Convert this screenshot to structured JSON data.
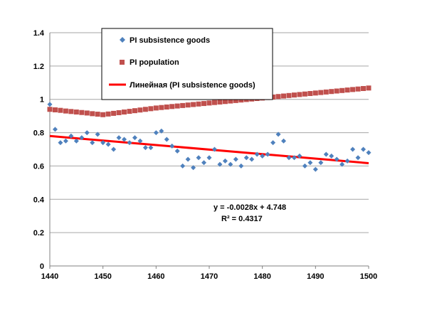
{
  "chart_data": {
    "type": "scatter",
    "title": "",
    "xlabel": "",
    "ylabel": "",
    "xlim": [
      1440,
      1500
    ],
    "ylim": [
      0,
      1.4
    ],
    "x_ticks": [
      "1440",
      "1450",
      "1460",
      "1470",
      "1480",
      "1490",
      "1500"
    ],
    "y_ticks": [
      "0",
      "0.2",
      "0.4",
      "0.6",
      "0.8",
      "1",
      "1.2",
      "1.4"
    ],
    "grid": "horizontal",
    "legend_position": "top-center",
    "legend": [
      "PI subsistence goods",
      "PI population",
      "Линейная (PI subsistence goods)"
    ],
    "series": [
      {
        "name": "PI subsistence goods",
        "marker": "diamond",
        "color": "#4F81BD",
        "x": [
          1440,
          1441,
          1442,
          1443,
          1444,
          1445,
          1446,
          1447,
          1448,
          1449,
          1450,
          1451,
          1452,
          1453,
          1454,
          1455,
          1456,
          1457,
          1458,
          1459,
          1460,
          1461,
          1462,
          1463,
          1464,
          1465,
          1466,
          1467,
          1468,
          1469,
          1470,
          1471,
          1472,
          1473,
          1474,
          1475,
          1476,
          1477,
          1478,
          1479,
          1480,
          1481,
          1482,
          1483,
          1484,
          1485,
          1486,
          1487,
          1488,
          1489,
          1490,
          1491,
          1492,
          1493,
          1494,
          1495,
          1496,
          1497,
          1498,
          1499,
          1500
        ],
        "y": [
          0.97,
          0.82,
          0.74,
          0.75,
          0.78,
          0.75,
          0.77,
          0.8,
          0.74,
          0.79,
          0.74,
          0.73,
          0.7,
          0.77,
          0.76,
          0.74,
          0.77,
          0.75,
          0.71,
          0.71,
          0.8,
          0.81,
          0.76,
          0.72,
          0.69,
          0.6,
          0.64,
          0.59,
          0.65,
          0.62,
          0.65,
          0.7,
          0.61,
          0.63,
          0.61,
          0.64,
          0.6,
          0.65,
          0.64,
          0.67,
          0.66,
          0.67,
          0.74,
          0.79,
          0.75,
          0.65,
          0.65,
          0.66,
          0.6,
          0.62,
          0.58,
          0.62,
          0.67,
          0.66,
          0.64,
          0.61,
          0.63,
          0.7,
          0.65,
          0.7,
          0.68
        ]
      },
      {
        "name": "PI population",
        "marker": "square",
        "color": "#C0504D",
        "x": [
          1440,
          1441,
          1442,
          1443,
          1444,
          1445,
          1446,
          1447,
          1448,
          1449,
          1450,
          1451,
          1452,
          1453,
          1454,
          1455,
          1456,
          1457,
          1458,
          1459,
          1460,
          1461,
          1462,
          1463,
          1464,
          1465,
          1466,
          1467,
          1468,
          1469,
          1470,
          1471,
          1472,
          1473,
          1474,
          1475,
          1476,
          1477,
          1478,
          1479,
          1480,
          1481,
          1482,
          1483,
          1484,
          1485,
          1486,
          1487,
          1488,
          1489,
          1490,
          1491,
          1492,
          1493,
          1494,
          1495,
          1496,
          1497,
          1498,
          1499,
          1500
        ],
        "y": [
          0.94,
          0.937,
          0.934,
          0.93,
          0.927,
          0.924,
          0.921,
          0.918,
          0.914,
          0.911,
          0.908,
          0.912,
          0.916,
          0.92,
          0.924,
          0.928,
          0.932,
          0.936,
          0.94,
          0.944,
          0.948,
          0.951,
          0.954,
          0.957,
          0.96,
          0.963,
          0.966,
          0.969,
          0.972,
          0.975,
          0.978,
          0.981,
          0.984,
          0.987,
          0.99,
          0.993,
          0.996,
          0.999,
          1.002,
          1.005,
          1.008,
          1.011,
          1.014,
          1.017,
          1.02,
          1.023,
          1.026,
          1.029,
          1.032,
          1.035,
          1.038,
          1.041,
          1.044,
          1.047,
          1.05,
          1.053,
          1.056,
          1.059,
          1.062,
          1.065,
          1.068
        ]
      }
    ],
    "trendline": {
      "name": "Линейная (PI subsistence goods)",
      "color": "#FF0000",
      "x": [
        1440,
        1500
      ],
      "y": [
        0.78,
        0.617
      ],
      "equation": "y = -0.0028x + 4.748",
      "r2": "R² = 0.4317"
    }
  }
}
